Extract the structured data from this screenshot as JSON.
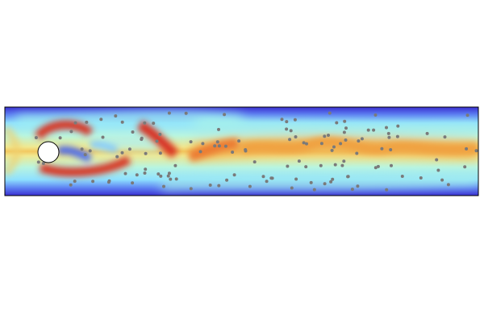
{
  "figure": {
    "type": "flow-field-visualization",
    "colormap": "jet",
    "colors": {
      "wall": "#3a2fd0",
      "near_wall": "#7fd8ff",
      "mid": "#c8f5c0",
      "core": "#f2c050",
      "vortex": "#d83020",
      "wake": "#4a6cf0",
      "particle": "#7a7a7a",
      "obstacle": "#ffffff",
      "frame": "#000000"
    },
    "obstacle": "circle-cylinder",
    "particles_shown": true
  }
}
